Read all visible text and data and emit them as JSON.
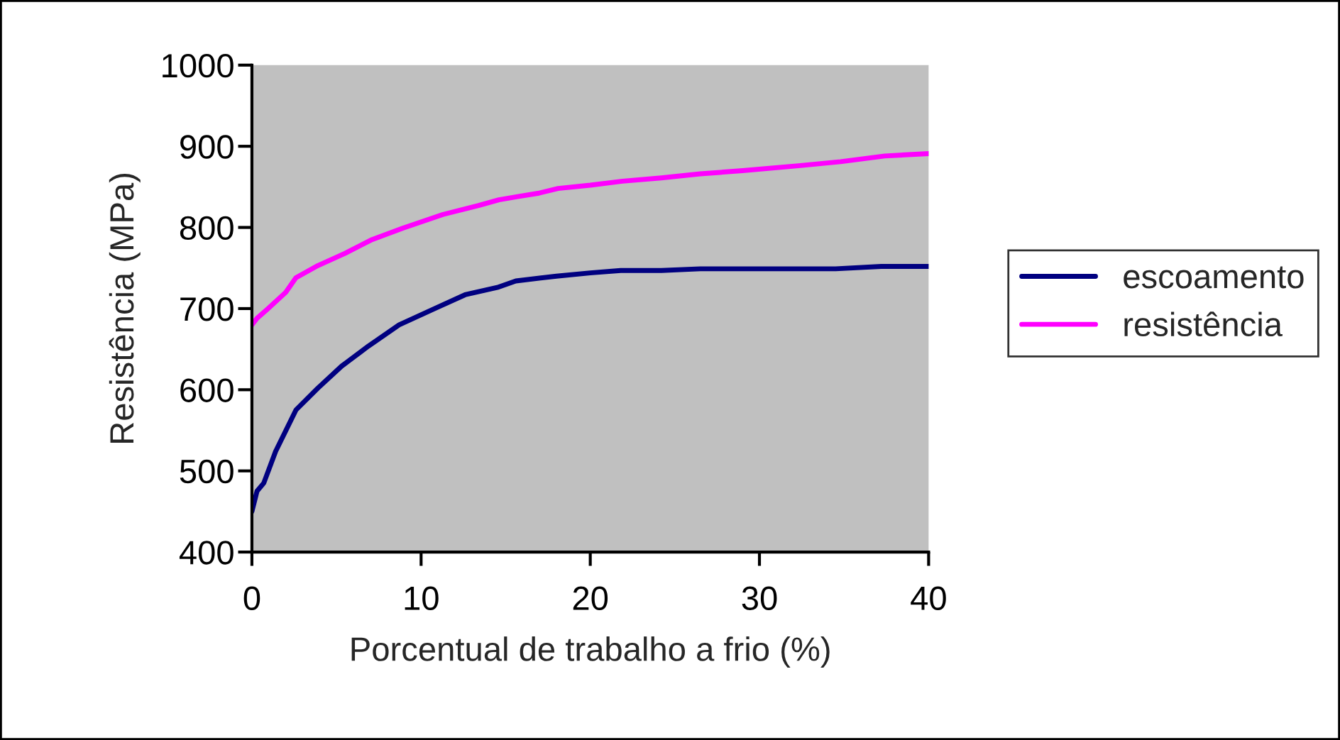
{
  "chart_data": {
    "type": "line",
    "xlabel": "Porcentual de trabalho a frio (%)",
    "ylabel": "Resistência (MPa)",
    "xlim": [
      0,
      40
    ],
    "xticks": [
      0,
      10,
      20,
      30,
      40
    ],
    "ylim": [
      400,
      1000
    ],
    "yticks": [
      400,
      500,
      600,
      700,
      800,
      900,
      1000
    ],
    "grid": false,
    "legend": "right",
    "marker": "none",
    "line_style": "solid",
    "series": [
      {
        "name": "escoamento",
        "color": "#000080",
        "x": [
          0,
          0.3,
          0.7,
          1.4,
          2.6,
          3.9,
          5.3,
          6.9,
          8.7,
          10.9,
          12.6,
          14.5,
          15.6,
          18,
          20,
          21.8,
          24.2,
          26.5,
          34.5,
          37.2,
          40
        ],
        "values": [
          450,
          475,
          485,
          524,
          575,
          602,
          629,
          654,
          680,
          701,
          717,
          726,
          734,
          740,
          744,
          747,
          747,
          749,
          749,
          752,
          752
        ]
      },
      {
        "name": "resistência",
        "color": "#ff00ff",
        "x": [
          0,
          0.3,
          0.9,
          2,
          2.6,
          3.9,
          5.5,
          7.1,
          8.9,
          11.3,
          13.4,
          14.6,
          15.7,
          16.9,
          18.1,
          20,
          21.9,
          24.2,
          26.5,
          29,
          32.3,
          34.8,
          37.4,
          40
        ],
        "values": [
          680,
          688,
          699,
          720,
          738,
          753,
          768,
          785,
          799,
          816,
          827,
          834,
          838,
          842,
          848,
          852,
          857,
          861,
          866,
          870,
          876,
          881,
          888,
          891
        ]
      }
    ]
  }
}
